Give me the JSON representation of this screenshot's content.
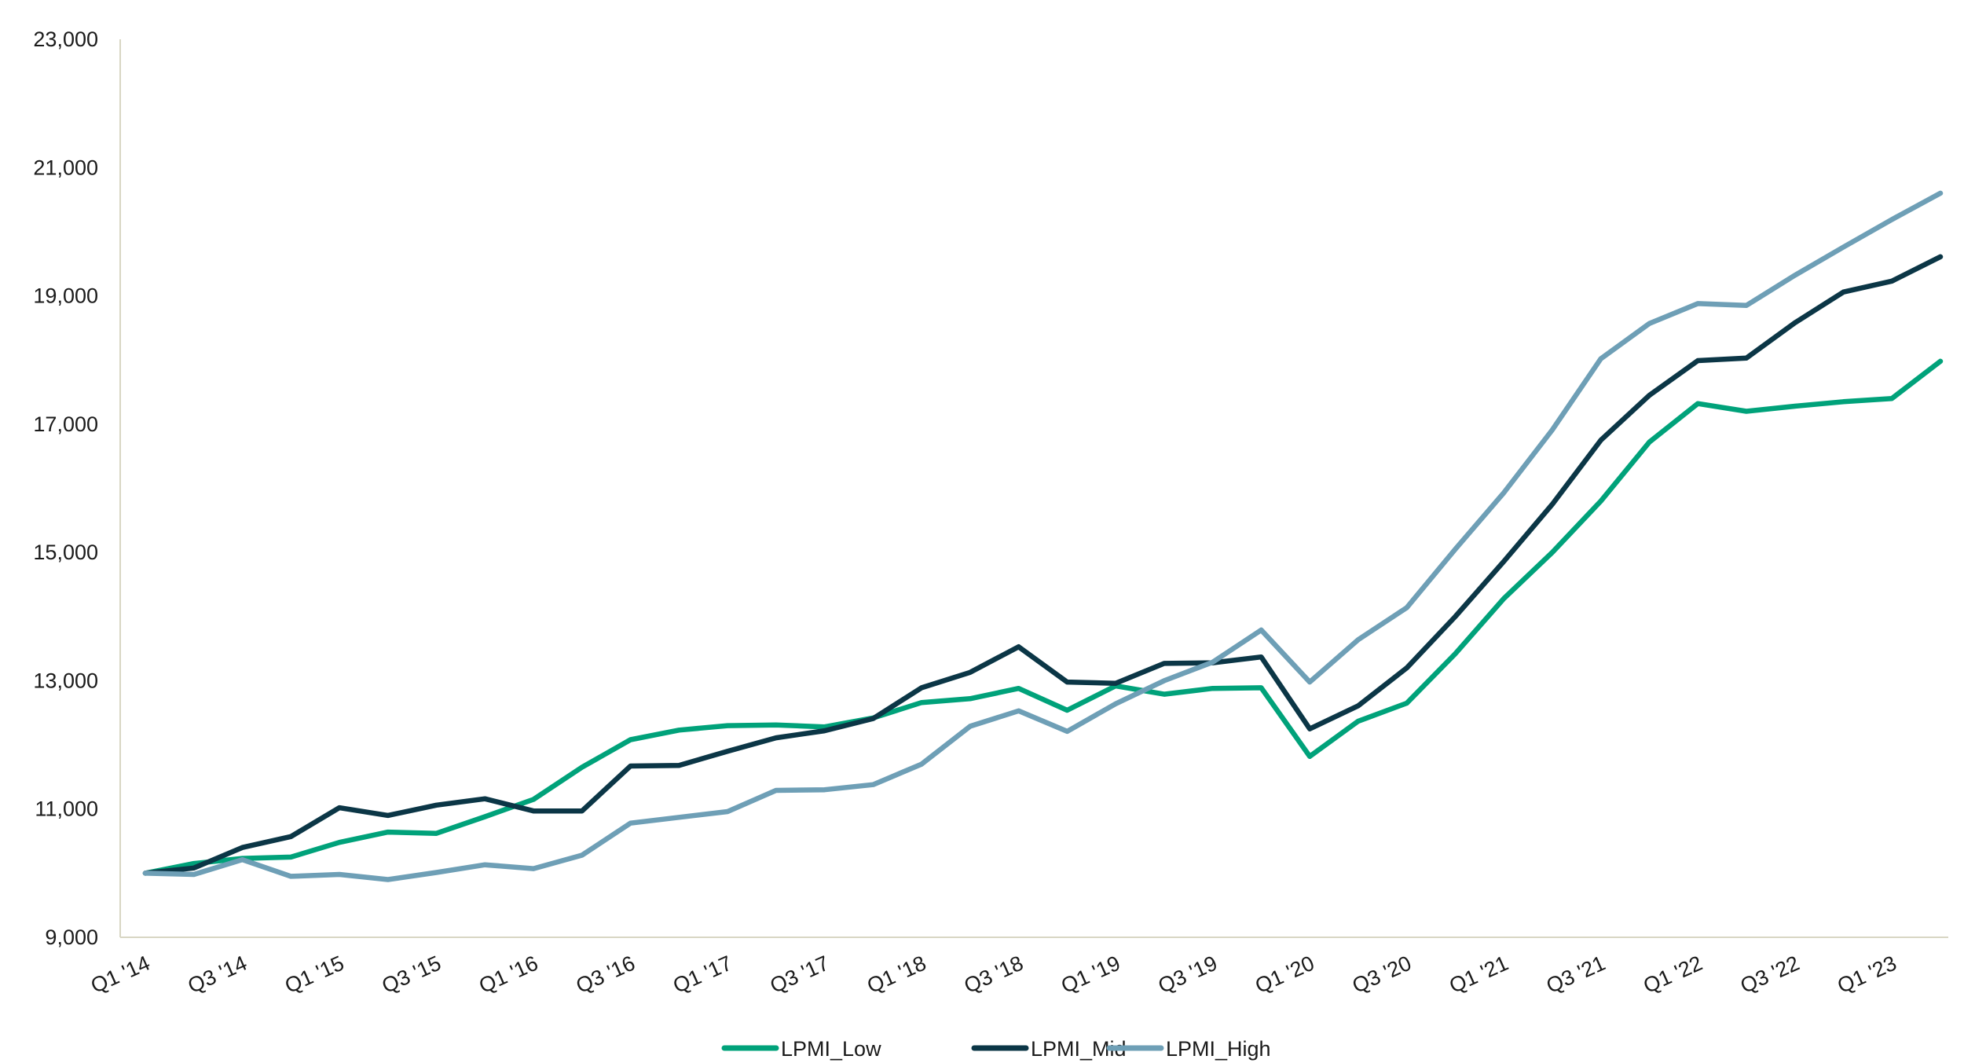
{
  "chart_data": {
    "type": "line",
    "title": "",
    "xlabel": "",
    "ylabel": "",
    "ylim": [
      9000,
      23000
    ],
    "yticks": [
      9000,
      11000,
      13000,
      15000,
      17000,
      19000,
      21000,
      23000
    ],
    "ytick_labels": [
      "9,000",
      "11,000",
      "13,000",
      "15,000",
      "17,000",
      "19,000",
      "21,000",
      "23,000"
    ],
    "grid": false,
    "legend_position": "bottom-center",
    "categories": [
      "Q1 '14",
      "Q2 '14",
      "Q3 '14",
      "Q4 '14",
      "Q1 '15",
      "Q2 '15",
      "Q3 '15",
      "Q4 '15",
      "Q1 '16",
      "Q2 '16",
      "Q3 '16",
      "Q4 '16",
      "Q1 '17",
      "Q2 '17",
      "Q3 '17",
      "Q4 '17",
      "Q1 '18",
      "Q2 '18",
      "Q3 '18",
      "Q4 '18",
      "Q1 '19",
      "Q2 '19",
      "Q3 '19",
      "Q4 '19",
      "Q1 '20",
      "Q2 '20",
      "Q3 '20",
      "Q4 '20",
      "Q1 '21",
      "Q2 '21",
      "Q3 '21",
      "Q4 '21",
      "Q1 '22",
      "Q2 '22",
      "Q3 '22",
      "Q4 '22",
      "Q1 '23",
      "Q2 '23"
    ],
    "xtick_labels": [
      "Q1 '14",
      "Q3 '14",
      "Q1 '15",
      "Q3 '15",
      "Q1 '16",
      "Q3 '16",
      "Q1 '17",
      "Q3 '17",
      "Q1 '18",
      "Q3 '18",
      "Q1 '19",
      "Q3 '19",
      "Q1 '20",
      "Q3 '20",
      "Q1 '21",
      "Q3 '21",
      "Q1 '22",
      "Q3 '22",
      "Q1 '23"
    ],
    "series": [
      {
        "name": "LPMI_Low",
        "color": "#00a27a",
        "values": [
          10000,
          10150,
          10230,
          10250,
          10480,
          10640,
          10620,
          10880,
          11150,
          11650,
          12080,
          12230,
          12300,
          12310,
          12280,
          12420,
          12660,
          12720,
          12880,
          12540,
          12920,
          12790,
          12880,
          12890,
          11820,
          12370,
          12650,
          13420,
          14280,
          15000,
          15800,
          16720,
          17320,
          17200,
          17280,
          17350,
          17400,
          17980
        ]
      },
      {
        "name": "LPMI_Mid",
        "color": "#0b3646",
        "values": [
          10000,
          10080,
          10400,
          10570,
          11020,
          10900,
          11060,
          11160,
          10970,
          10970,
          11670,
          11680,
          11900,
          12110,
          12220,
          12410,
          12890,
          13130,
          13530,
          12980,
          12960,
          13270,
          13280,
          13370,
          12250,
          12610,
          13200,
          14000,
          14860,
          15750,
          16750,
          17450,
          17990,
          18030,
          18580,
          19060,
          19230,
          19610
        ]
      },
      {
        "name": "LPMI_High",
        "color": "#6e9fb6",
        "values": [
          10000,
          9980,
          10210,
          9950,
          9980,
          9900,
          10010,
          10130,
          10070,
          10280,
          10780,
          10870,
          10960,
          11290,
          11300,
          11380,
          11700,
          12290,
          12530,
          12210,
          12640,
          13000,
          13290,
          13790,
          12980,
          13640,
          14140,
          15050,
          15930,
          16910,
          18020,
          18570,
          18880,
          18850,
          19320,
          19760,
          20190,
          20600
        ]
      }
    ]
  }
}
